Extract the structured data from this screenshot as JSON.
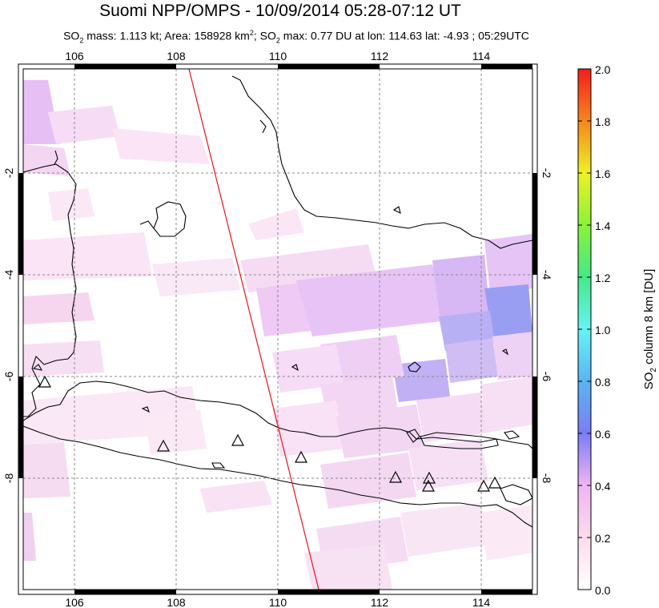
{
  "title": "Suomi NPP/OMPS - 10/09/2014 05:28-07:12 UT",
  "subtitle": {
    "so2_mass_label": "SO",
    "so2_mass_sub": "2",
    "so2_mass_text": " mass: 1.113 kt; Area: 158928 km",
    "area_sup": "2",
    "so2_max_pre": "; SO",
    "so2_max_sub": "2",
    "so2_max_text": " max: 0.77 DU at lon: 114.63 lat: -4.93 ; 05:29UTC"
  },
  "map": {
    "lon_range": [
      105,
      115
    ],
    "lat_range": [
      -10,
      0
    ],
    "lon_ticks": [
      "106",
      "108",
      "110",
      "112",
      "114"
    ],
    "lat_ticks": [
      "-2",
      "-4",
      "-6",
      "-8"
    ],
    "volcano_icon": "triangle-volcano-icon",
    "orbit_line_color": "#e8141a"
  },
  "colorbar": {
    "title_pre": "SO",
    "title_sub": "2",
    "title_post": " column 8 km [DU]",
    "ticks": [
      "0.0",
      "0.2",
      "0.4",
      "0.6",
      "0.8",
      "1.0",
      "1.2",
      "1.4",
      "1.6",
      "1.8",
      "2.0"
    ],
    "range": [
      0,
      2
    ]
  }
}
